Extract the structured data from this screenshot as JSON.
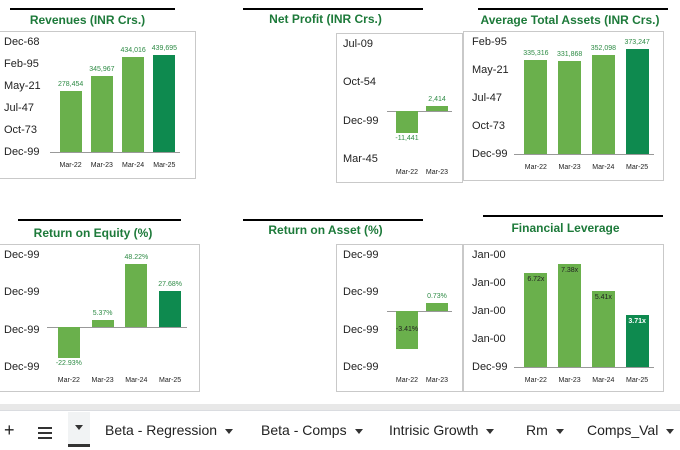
{
  "charts": [
    {
      "id": "revenues",
      "title": "Revenues (INR Crs.)",
      "yticks": [
        "Dec-68",
        "Feb-95",
        "May-21",
        "Jul-47",
        "Oct-73",
        "Dec-99"
      ],
      "categories": [
        "Mar-22",
        "Mar-23",
        "Mar-24",
        "Mar-25"
      ],
      "values": [
        278454,
        345967,
        434016,
        439695
      ],
      "labels": [
        "278,454",
        "345,967",
        "434,016",
        "439,695"
      ],
      "ymin": 0,
      "ymax": 500000
    },
    {
      "id": "net-profit",
      "title": "Net Profit (INR Crs.)",
      "yticks": [
        "Jul-09",
        "Oct-54",
        "Dec-99",
        "Mar-45"
      ],
      "categories": [
        "Mar-22",
        "Mar-23"
      ],
      "values": [
        -11441,
        2414
      ],
      "labels": [
        "-11,441",
        "2,414"
      ],
      "ymin": -25000,
      "ymax": 35000
    },
    {
      "id": "avg-total-assets",
      "title": "Average Total Assets (INR Crs.)",
      "yticks": [
        "Feb-95",
        "May-21",
        "Jul-47",
        "Oct-73",
        "Dec-99"
      ],
      "categories": [
        "Mar-22",
        "Mar-23",
        "Mar-24",
        "Mar-25"
      ],
      "values": [
        335316,
        331868,
        352098,
        373247
      ],
      "labels": [
        "335,316",
        "331,868",
        "352,098",
        "373,247"
      ],
      "ymin": 0,
      "ymax": 400000
    },
    {
      "id": "roe",
      "title": "Return on Equity (%)",
      "yticks": [
        "Dec-99",
        "Dec-99",
        "Dec-99",
        "Dec-99"
      ],
      "categories": [
        "Mar-22",
        "Mar-23",
        "Mar-24",
        "Mar-25"
      ],
      "values": [
        -22.93,
        5.37,
        48.22,
        27.68
      ],
      "labels": [
        "-22.93%",
        "5.37%",
        "48.22%",
        "27.68%"
      ],
      "ymin": -30,
      "ymax": 55
    },
    {
      "id": "roa",
      "title": "Return on Asset (%)",
      "yticks": [
        "Dec-99",
        "Dec-99",
        "Dec-99",
        "Dec-99"
      ],
      "categories": [
        "Mar-22",
        "Mar-23"
      ],
      "values": [
        -3.41,
        0.73
      ],
      "labels": [
        "-3.41%",
        "0.73%"
      ],
      "ymin": -5,
      "ymax": 5
    },
    {
      "id": "fin-leverage",
      "title": "Financial Leverage",
      "yticks": [
        "Jan-00",
        "Jan-00",
        "Jan-00",
        "Jan-00",
        "Dec-99"
      ],
      "categories": [
        "Mar-22",
        "Mar-23",
        "Mar-24",
        "Mar-25"
      ],
      "values": [
        6.72,
        7.38,
        5.41,
        3.71
      ],
      "labels": [
        "6.72x",
        "7.38x",
        "5.41x",
        "3.71x"
      ],
      "ymin": 0,
      "ymax": 8
    }
  ],
  "colors": {
    "bar": "#6ab04c",
    "last": "#0e8a4f",
    "title": "#1d7a3a"
  },
  "tabs": {
    "add": "+",
    "sheets": [
      "Beta - Regression",
      "Beta - Comps",
      "Intrisic Growth",
      "Rm",
      "Comps_Val"
    ]
  }
}
